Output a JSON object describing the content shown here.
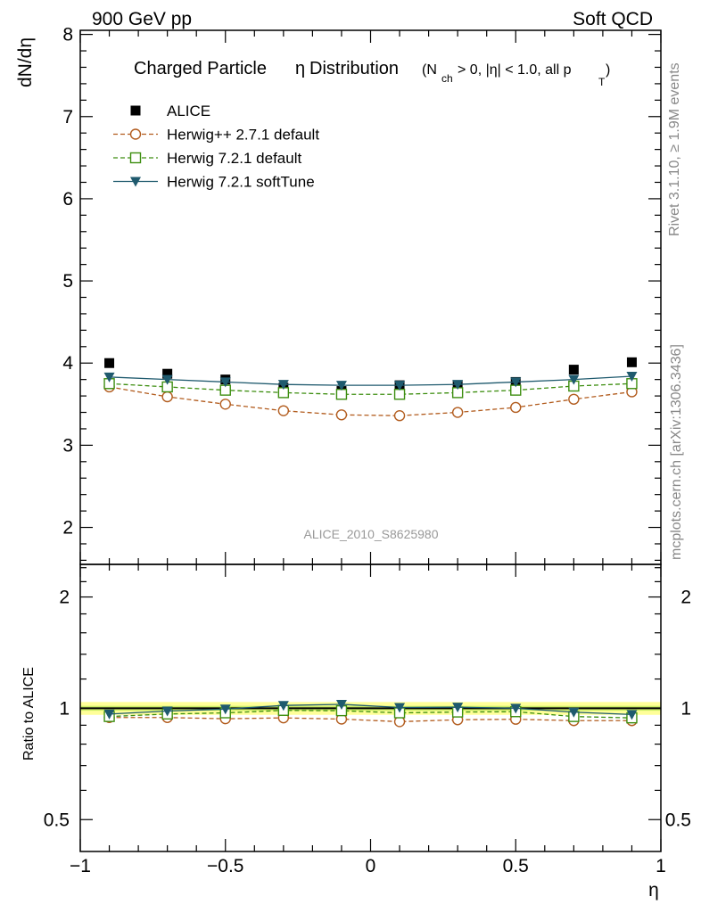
{
  "header": {
    "left": "900 GeV pp",
    "right": "Soft QCD"
  },
  "side_labels": {
    "rivet": "Rivet 3.1.10, ≥ 1.9M events",
    "mcplots": "mcplots.cern.ch [arXiv:1306.3436]"
  },
  "analysis_id": "ALICE_2010_S8625980",
  "chart_data": [
    {
      "type": "line",
      "title": {
        "main": "Charged Particle",
        "eta": "η",
        "dist": "Distribution",
        "cut_open": "(N",
        "cut_sub": "ch",
        "cut_mid": "> 0, |η| < 1.0, all p",
        "cut_sub2": "T",
        "cut_close": ")"
      },
      "ylabel": "dN/dη",
      "xlabel": "η",
      "xlim": [
        -1.0,
        1.0
      ],
      "ylim": [
        1.55,
        8.05
      ],
      "xticks": [
        -1,
        -0.5,
        0,
        0.5,
        1
      ],
      "xtick_labels": [
        "−1",
        "−0.5",
        "0",
        "0.5",
        "1"
      ],
      "yticks": [
        2,
        3,
        4,
        5,
        6,
        7,
        8
      ],
      "ytick_labels": [
        "2",
        "3",
        "4",
        "5",
        "6",
        "7",
        "8"
      ],
      "legend_position": "top-left",
      "x": [
        -0.9,
        -0.7,
        -0.5,
        -0.3,
        -0.1,
        0.1,
        0.3,
        0.5,
        0.7,
        0.9
      ],
      "series": [
        {
          "name": "ALICE",
          "marker": "filled-square",
          "color": "#000000",
          "values": [
            4.0,
            3.87,
            3.8,
            3.7,
            3.66,
            3.73,
            3.73,
            3.77,
            3.92,
            4.01
          ]
        },
        {
          "name": "Herwig++ 2.7.1 default",
          "marker": "open-circle",
          "color": "#b25c1e",
          "dashed": true,
          "values": [
            3.71,
            3.59,
            3.5,
            3.42,
            3.37,
            3.36,
            3.4,
            3.46,
            3.56,
            3.65
          ]
        },
        {
          "name": "Herwig 7.2.1 default",
          "marker": "open-square",
          "color": "#3d8e10",
          "dashed": true,
          "values": [
            3.75,
            3.71,
            3.67,
            3.64,
            3.62,
            3.62,
            3.64,
            3.67,
            3.72,
            3.75
          ]
        },
        {
          "name": "Herwig 7.2.1 softTune",
          "marker": "filled-triangle-down",
          "color": "#1f5a6e",
          "dashed": false,
          "values": [
            3.83,
            3.8,
            3.77,
            3.74,
            3.73,
            3.73,
            3.74,
            3.77,
            3.8,
            3.84
          ]
        }
      ]
    },
    {
      "type": "line",
      "ylabel": "Ratio to ALICE",
      "xlabel": "η",
      "xlim": [
        -1.0,
        1.0
      ],
      "ylim": [
        0.41,
        2.45
      ],
      "log_y": true,
      "yticks": [
        0.5,
        1,
        2
      ],
      "ytick_labels": [
        "0.5",
        "1",
        "2"
      ],
      "band": {
        "outer": [
          0.96,
          1.04
        ],
        "inner": [
          0.985,
          1.015
        ],
        "outer_color": "#ffff99",
        "inner_color": "#ccee66"
      },
      "x": [
        -0.9,
        -0.7,
        -0.5,
        -0.3,
        -0.1,
        0.1,
        0.3,
        0.5,
        0.7,
        0.9
      ],
      "series": [
        {
          "name": "Herwig++ 2.7.1 default",
          "marker": "open-circle",
          "color": "#b25c1e",
          "dashed": true,
          "values": [
            0.944,
            0.944,
            0.937,
            0.942,
            0.935,
            0.92,
            0.931,
            0.934,
            0.926,
            0.926
          ]
        },
        {
          "name": "Herwig 7.2.1 default",
          "marker": "open-square",
          "color": "#3d8e10",
          "dashed": true,
          "values": [
            0.95,
            0.965,
            0.972,
            0.987,
            0.985,
            0.972,
            0.977,
            0.979,
            0.95,
            0.942
          ]
        },
        {
          "name": "Herwig 7.2.1 softTune",
          "marker": "filled-triangle-down",
          "color": "#1f5a6e",
          "dashed": false,
          "values": [
            0.965,
            0.983,
            0.995,
            1.018,
            1.025,
            1.005,
            1.007,
            1.0,
            0.976,
            0.962
          ]
        }
      ]
    }
  ]
}
